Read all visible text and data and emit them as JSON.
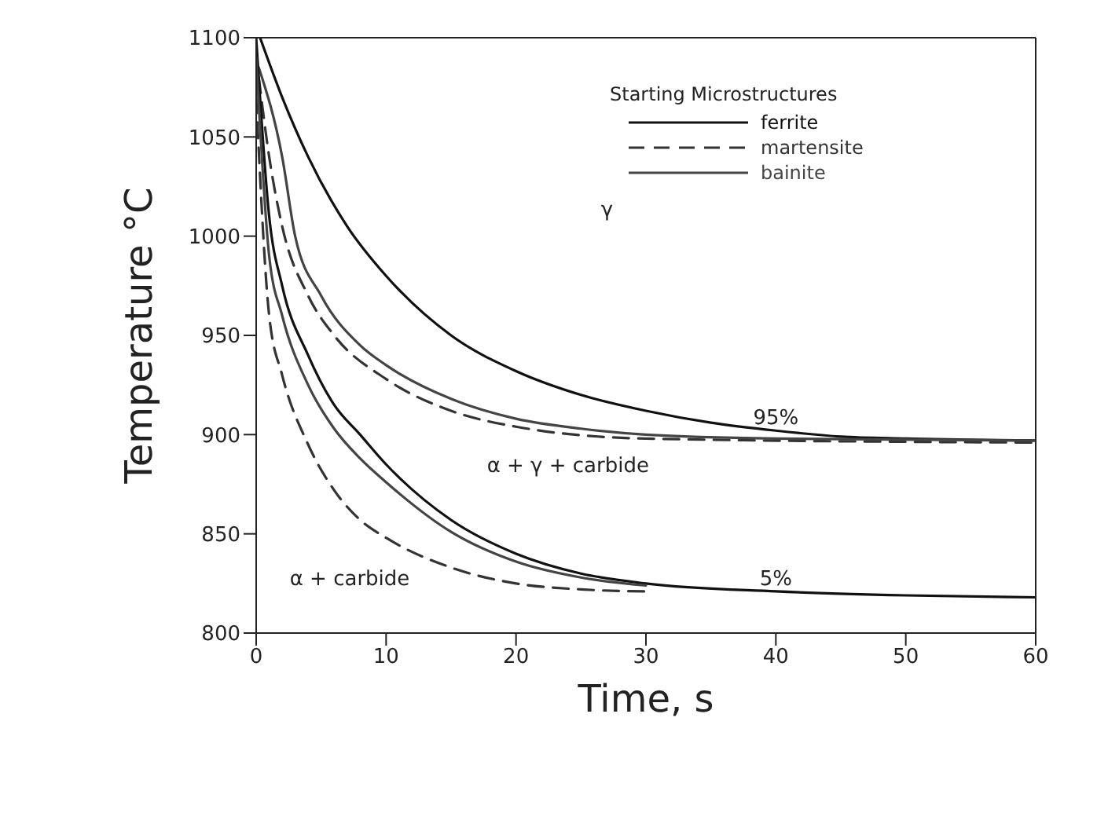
{
  "chart_data": {
    "type": "line",
    "xlabel": "Time, s",
    "ylabel": "Temperature °C",
    "legend_title": "Starting Microstructures",
    "xlim": [
      0,
      60
    ],
    "xticks": [
      0,
      10,
      20,
      30,
      40,
      50,
      60
    ],
    "ylim": [
      800,
      1100
    ],
    "yticks": [
      800,
      850,
      900,
      950,
      1000,
      1050,
      1100
    ],
    "legend": "top right",
    "marker": "none",
    "series": [
      {
        "name": "ferrite",
        "color": "#111111",
        "line_style": "solid",
        "x": [
          0.3,
          2,
          4,
          7,
          10,
          15,
          20,
          25,
          30,
          35,
          40,
          45,
          50,
          60
        ],
        "values": [
          1100,
          1070,
          1040,
          1005,
          980,
          950,
          932,
          920,
          912,
          906,
          902,
          899,
          898,
          897
        ]
      },
      {
        "name": "martensite",
        "color": "#333333",
        "line_style": "dashed",
        "x": [
          0.2,
          1,
          2,
          4,
          6,
          10,
          15,
          20,
          30,
          60
        ],
        "values": [
          1080,
          1040,
          1005,
          970,
          950,
          928,
          912,
          904,
          898,
          896
        ]
      },
      {
        "name": "bainite",
        "color": "#444444",
        "line_style": "solid",
        "x": [
          0.2,
          2,
          3,
          5,
          8,
          10,
          15,
          20,
          25,
          30,
          40,
          60
        ],
        "values": [
          1085,
          1040,
          1000,
          970,
          945,
          935,
          918,
          908,
          903,
          900,
          898,
          897
        ]
      },
      {
        "color": "#111111",
        "line_style": "solid",
        "x": [
          0,
          1,
          2,
          4,
          6,
          8,
          10,
          15,
          20,
          25,
          30,
          40,
          50,
          60
        ],
        "values": [
          1100,
          1010,
          975,
          940,
          915,
          900,
          885,
          857,
          840,
          830,
          825,
          821,
          819,
          818
        ]
      },
      {
        "color": "#333333",
        "line_style": "dashed",
        "x": [
          0,
          1,
          2,
          4,
          6,
          8,
          10,
          15,
          20,
          25,
          30
        ],
        "values": [
          1070,
          960,
          930,
          895,
          872,
          857,
          848,
          833,
          825,
          822,
          821
        ]
      },
      {
        "color": "#444444",
        "line_style": "solid",
        "x": [
          0,
          1,
          2,
          4,
          6,
          8,
          10,
          15,
          20,
          25,
          30
        ],
        "values": [
          1090,
          990,
          960,
          925,
          903,
          888,
          876,
          851,
          836,
          828,
          824
        ]
      }
    ],
    "annotations": [
      "γ",
      {
        "text": "95%",
        "x": 40,
        "y": 902
      },
      "α + γ + carbide",
      {
        "text": "5%",
        "x": 40,
        "y": 821
      },
      "α + carbide"
    ]
  }
}
